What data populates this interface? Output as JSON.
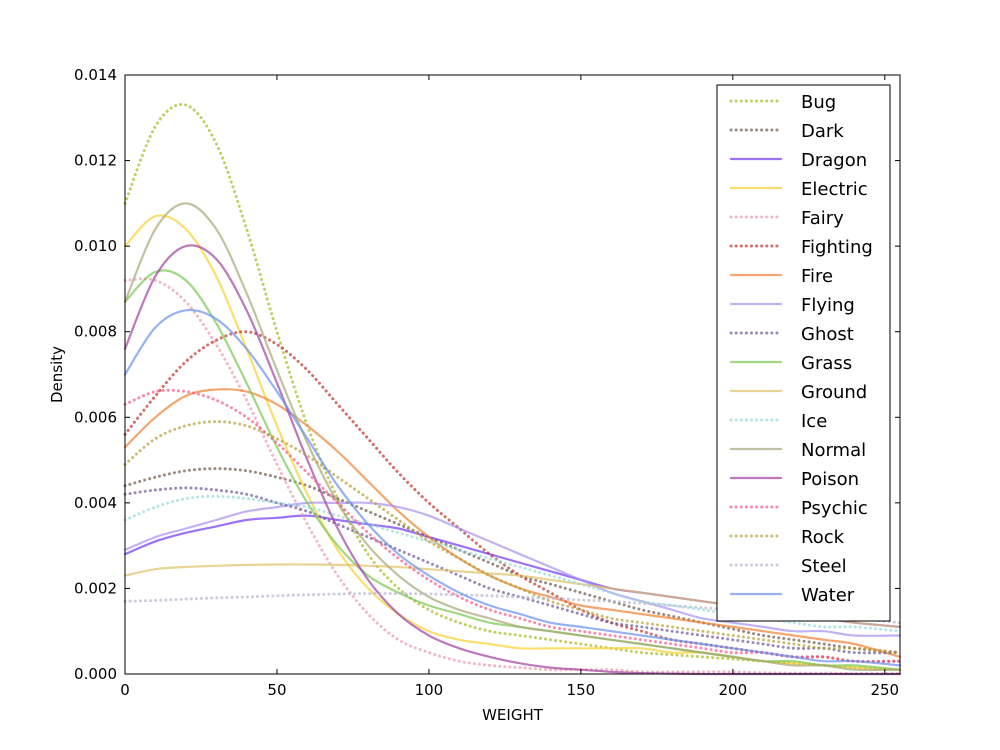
{
  "chart_data": {
    "type": "line",
    "title": "",
    "xlabel": "WEIGHT",
    "ylabel": "Density",
    "xlim": [
      0,
      255
    ],
    "ylim": [
      0,
      0.014
    ],
    "xticks": [
      "0",
      "50",
      "100",
      "150",
      "200",
      "250"
    ],
    "xtick_values": [
      0,
      50,
      100,
      150,
      200,
      250
    ],
    "yticks": [
      "0.000",
      "0.002",
      "0.004",
      "0.006",
      "0.008",
      "0.010",
      "0.012",
      "0.014"
    ],
    "ytick_values": [
      0,
      0.002,
      0.004,
      0.006,
      0.008,
      0.01,
      0.012,
      0.014
    ],
    "grid": false,
    "legend_position": "top-right",
    "x": [
      0,
      10,
      20,
      30,
      40,
      50,
      60,
      70,
      80,
      90,
      100,
      110,
      120,
      130,
      140,
      150,
      160,
      170,
      180,
      190,
      200,
      210,
      220,
      230,
      240,
      255
    ],
    "series": [
      {
        "name": "Bug",
        "color": "#a8b820",
        "style": "dotted",
        "values": [
          0.011,
          0.0128,
          0.0133,
          0.0124,
          0.0104,
          0.008,
          0.0058,
          0.0041,
          0.0028,
          0.002,
          0.0015,
          0.0012,
          0.001,
          0.0009,
          0.0008,
          0.0007,
          0.0006,
          0.0005,
          0.00045,
          0.0004,
          0.00035,
          0.0003,
          0.00025,
          0.0002,
          0.00015,
          0.0001
        ]
      },
      {
        "name": "Dark",
        "color": "#705848",
        "style": "dotted",
        "values": [
          0.0044,
          0.0046,
          0.00475,
          0.0048,
          0.00475,
          0.0046,
          0.0044,
          0.0041,
          0.0038,
          0.0035,
          0.0032,
          0.0029,
          0.0026,
          0.0023,
          0.0021,
          0.0019,
          0.0017,
          0.0015,
          0.00135,
          0.0012,
          0.00105,
          0.0009,
          0.0008,
          0.0007,
          0.0006,
          0.0005
        ]
      },
      {
        "name": "Dragon",
        "color": "#7038f8",
        "style": "solid",
        "values": [
          0.0028,
          0.0031,
          0.0033,
          0.00345,
          0.0036,
          0.00365,
          0.0037,
          0.0036,
          0.0035,
          0.0034,
          0.0032,
          0.003,
          0.0028,
          0.0026,
          0.0024,
          0.0022,
          0.002,
          0.0019,
          0.0018,
          0.0017,
          0.0016,
          0.0015,
          0.0014,
          0.0013,
          0.0012,
          0.0011
        ]
      },
      {
        "name": "Electric",
        "color": "#f8d030",
        "style": "solid",
        "values": [
          0.01,
          0.0107,
          0.0104,
          0.0093,
          0.0076,
          0.0058,
          0.0042,
          0.0029,
          0.002,
          0.0014,
          0.001,
          0.0008,
          0.0007,
          0.0006,
          0.0006,
          0.0006,
          0.0006,
          0.0006,
          0.0005,
          0.0005,
          0.0004,
          0.0003,
          0.00025,
          0.0002,
          0.00015,
          0.0001
        ]
      },
      {
        "name": "Fairy",
        "color": "#ee99ac",
        "style": "dotted",
        "values": [
          0.0092,
          0.0092,
          0.0087,
          0.0077,
          0.0064,
          0.0049,
          0.0035,
          0.0023,
          0.0014,
          0.0008,
          0.0005,
          0.0003,
          0.0002,
          0.00015,
          0.0001,
          0.0001,
          0.0001,
          5e-05,
          5e-05,
          5e-05,
          5e-05,
          3e-05,
          2e-05,
          2e-05,
          1e-05,
          1e-05
        ]
      },
      {
        "name": "Fighting",
        "color": "#c03028",
        "style": "dotted",
        "values": [
          0.0056,
          0.0065,
          0.0073,
          0.0078,
          0.008,
          0.0077,
          0.0071,
          0.0063,
          0.0055,
          0.0047,
          0.004,
          0.0034,
          0.0028,
          0.0023,
          0.0019,
          0.0015,
          0.0012,
          0.001,
          0.0008,
          0.0007,
          0.0006,
          0.0005,
          0.0004,
          0.0004,
          0.0003,
          0.0003
        ]
      },
      {
        "name": "Fire",
        "color": "#f08030",
        "style": "solid",
        "values": [
          0.0053,
          0.006,
          0.0065,
          0.00665,
          0.0066,
          0.0063,
          0.0058,
          0.0052,
          0.0045,
          0.0038,
          0.0032,
          0.0027,
          0.0023,
          0.002,
          0.0018,
          0.0016,
          0.0015,
          0.0014,
          0.0013,
          0.0012,
          0.0011,
          0.001,
          0.0009,
          0.0008,
          0.0007,
          0.0004
        ]
      },
      {
        "name": "Flying",
        "color": "#a890f0",
        "style": "solid",
        "values": [
          0.0029,
          0.0032,
          0.0034,
          0.0036,
          0.0038,
          0.0039,
          0.004,
          0.004,
          0.004,
          0.0039,
          0.0037,
          0.0034,
          0.0031,
          0.0028,
          0.0025,
          0.0022,
          0.0019,
          0.0017,
          0.0015,
          0.0013,
          0.0012,
          0.0011,
          0.001,
          0.001,
          0.0009,
          0.0009
        ]
      },
      {
        "name": "Ghost",
        "color": "#705898",
        "style": "dotted",
        "values": [
          0.0042,
          0.0043,
          0.00435,
          0.0043,
          0.0042,
          0.004,
          0.0038,
          0.0035,
          0.0032,
          0.0029,
          0.0026,
          0.0023,
          0.002,
          0.0018,
          0.0016,
          0.0014,
          0.0012,
          0.0011,
          0.001,
          0.0009,
          0.0008,
          0.0007,
          0.0006,
          0.0006,
          0.0005,
          0.0005
        ]
      },
      {
        "name": "Grass",
        "color": "#78c850",
        "style": "solid",
        "values": [
          0.0087,
          0.0094,
          0.0092,
          0.0082,
          0.0068,
          0.0053,
          0.004,
          0.003,
          0.0023,
          0.0019,
          0.0016,
          0.0014,
          0.0012,
          0.0011,
          0.001,
          0.0009,
          0.0008,
          0.0007,
          0.0006,
          0.0005,
          0.0004,
          0.0003,
          0.0003,
          0.0002,
          0.0002,
          0.0001
        ]
      },
      {
        "name": "Ground",
        "color": "#e0c068",
        "style": "solid",
        "values": [
          0.0023,
          0.00245,
          0.0025,
          0.00253,
          0.00255,
          0.00256,
          0.00256,
          0.00255,
          0.00253,
          0.0025,
          0.00245,
          0.0024,
          0.00235,
          0.0023,
          0.0022,
          0.0021,
          0.002,
          0.0019,
          0.0018,
          0.0017,
          0.0016,
          0.0015,
          0.0014,
          0.0013,
          0.0012,
          0.0011
        ]
      },
      {
        "name": "Ice",
        "color": "#98d8d8",
        "style": "dotted",
        "values": [
          0.0036,
          0.0039,
          0.0041,
          0.00415,
          0.0041,
          0.004,
          0.0039,
          0.0037,
          0.0035,
          0.0033,
          0.0031,
          0.0029,
          0.0027,
          0.0025,
          0.0023,
          0.0021,
          0.0019,
          0.0017,
          0.0016,
          0.0015,
          0.0014,
          0.0013,
          0.0012,
          0.0011,
          0.0011,
          0.001
        ]
      },
      {
        "name": "Normal",
        "color": "#a8a878",
        "style": "solid",
        "values": [
          0.0087,
          0.0104,
          0.011,
          0.0104,
          0.0089,
          0.0071,
          0.0054,
          0.004,
          0.003,
          0.0023,
          0.0018,
          0.0015,
          0.0013,
          0.0011,
          0.001,
          0.0009,
          0.0008,
          0.0007,
          0.0006,
          0.0005,
          0.0004,
          0.0003,
          0.0002,
          0.0002,
          0.0001,
          0.0001
        ]
      },
      {
        "name": "Poison",
        "color": "#a040a0",
        "style": "solid",
        "values": [
          0.0076,
          0.0093,
          0.01,
          0.0097,
          0.0085,
          0.0068,
          0.005,
          0.0034,
          0.0022,
          0.0014,
          0.0009,
          0.0006,
          0.0004,
          0.00025,
          0.00015,
          0.0001,
          5e-05,
          2e-05,
          1e-05,
          0.0,
          0.0,
          0.0,
          0.0,
          0.0,
          0.0,
          0.0
        ]
      },
      {
        "name": "Psychic",
        "color": "#f85888",
        "style": "dotted",
        "values": [
          0.0063,
          0.0066,
          0.0066,
          0.0064,
          0.006,
          0.0054,
          0.0047,
          0.004,
          0.0033,
          0.0027,
          0.0022,
          0.0018,
          0.0015,
          0.0013,
          0.0011,
          0.001,
          0.0009,
          0.0008,
          0.0007,
          0.0006,
          0.0005,
          0.0005,
          0.0004,
          0.0004,
          0.0003,
          0.0003
        ]
      },
      {
        "name": "Rock",
        "color": "#b8a038",
        "style": "dotted",
        "values": [
          0.0049,
          0.0055,
          0.0058,
          0.0059,
          0.0058,
          0.0055,
          0.0051,
          0.0046,
          0.0041,
          0.0036,
          0.0031,
          0.0027,
          0.0023,
          0.002,
          0.0017,
          0.0015,
          0.0013,
          0.0012,
          0.0011,
          0.001,
          0.0009,
          0.0008,
          0.0007,
          0.0006,
          0.0006,
          0.0005
        ]
      },
      {
        "name": "Steel",
        "color": "#b8b8d0",
        "style": "dotted",
        "values": [
          0.0017,
          0.00172,
          0.00175,
          0.00178,
          0.0018,
          0.00183,
          0.00185,
          0.00187,
          0.00188,
          0.00188,
          0.00187,
          0.00185,
          0.00183,
          0.0018,
          0.00177,
          0.00173,
          0.0017,
          0.00165,
          0.0016,
          0.00155,
          0.0015,
          0.00145,
          0.0014,
          0.00135,
          0.0013,
          0.0012
        ]
      },
      {
        "name": "Water",
        "color": "#6890f0",
        "style": "solid",
        "values": [
          0.007,
          0.0081,
          0.0085,
          0.0083,
          0.0076,
          0.0066,
          0.0055,
          0.0044,
          0.0035,
          0.0028,
          0.0023,
          0.0019,
          0.0016,
          0.0014,
          0.0012,
          0.0011,
          0.001,
          0.0009,
          0.0008,
          0.0007,
          0.0006,
          0.0005,
          0.0004,
          0.0003,
          0.0003,
          0.0002
        ]
      }
    ]
  }
}
